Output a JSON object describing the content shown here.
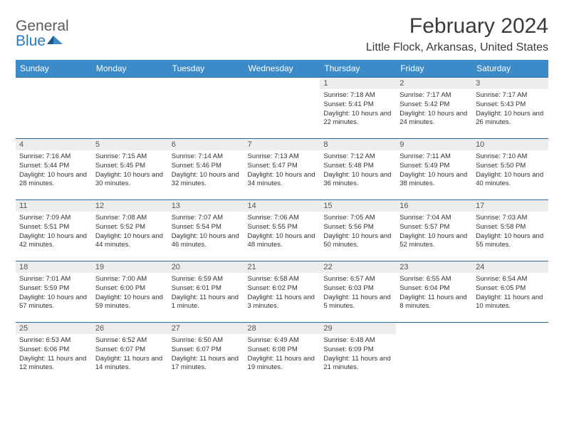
{
  "brand": {
    "part1": "General",
    "part2": "Blue"
  },
  "title": "February 2024",
  "location": "Little Flock, Arkansas, United States",
  "colors": {
    "header_bg": "#3b8bc9",
    "header_text": "#ffffff",
    "daynum_bg": "#ededed",
    "row_border": "#2b6aa0",
    "brand_gray": "#5a5a5a",
    "brand_blue": "#2b78c5"
  },
  "weekdays": [
    "Sunday",
    "Monday",
    "Tuesday",
    "Wednesday",
    "Thursday",
    "Friday",
    "Saturday"
  ],
  "weeks": [
    [
      {
        "n": "",
        "sr": "",
        "ss": "",
        "dl": ""
      },
      {
        "n": "",
        "sr": "",
        "ss": "",
        "dl": ""
      },
      {
        "n": "",
        "sr": "",
        "ss": "",
        "dl": ""
      },
      {
        "n": "",
        "sr": "",
        "ss": "",
        "dl": ""
      },
      {
        "n": "1",
        "sr": "Sunrise: 7:18 AM",
        "ss": "Sunset: 5:41 PM",
        "dl": "Daylight: 10 hours and 22 minutes."
      },
      {
        "n": "2",
        "sr": "Sunrise: 7:17 AM",
        "ss": "Sunset: 5:42 PM",
        "dl": "Daylight: 10 hours and 24 minutes."
      },
      {
        "n": "3",
        "sr": "Sunrise: 7:17 AM",
        "ss": "Sunset: 5:43 PM",
        "dl": "Daylight: 10 hours and 26 minutes."
      }
    ],
    [
      {
        "n": "4",
        "sr": "Sunrise: 7:16 AM",
        "ss": "Sunset: 5:44 PM",
        "dl": "Daylight: 10 hours and 28 minutes."
      },
      {
        "n": "5",
        "sr": "Sunrise: 7:15 AM",
        "ss": "Sunset: 5:45 PM",
        "dl": "Daylight: 10 hours and 30 minutes."
      },
      {
        "n": "6",
        "sr": "Sunrise: 7:14 AM",
        "ss": "Sunset: 5:46 PM",
        "dl": "Daylight: 10 hours and 32 minutes."
      },
      {
        "n": "7",
        "sr": "Sunrise: 7:13 AM",
        "ss": "Sunset: 5:47 PM",
        "dl": "Daylight: 10 hours and 34 minutes."
      },
      {
        "n": "8",
        "sr": "Sunrise: 7:12 AM",
        "ss": "Sunset: 5:48 PM",
        "dl": "Daylight: 10 hours and 36 minutes."
      },
      {
        "n": "9",
        "sr": "Sunrise: 7:11 AM",
        "ss": "Sunset: 5:49 PM",
        "dl": "Daylight: 10 hours and 38 minutes."
      },
      {
        "n": "10",
        "sr": "Sunrise: 7:10 AM",
        "ss": "Sunset: 5:50 PM",
        "dl": "Daylight: 10 hours and 40 minutes."
      }
    ],
    [
      {
        "n": "11",
        "sr": "Sunrise: 7:09 AM",
        "ss": "Sunset: 5:51 PM",
        "dl": "Daylight: 10 hours and 42 minutes."
      },
      {
        "n": "12",
        "sr": "Sunrise: 7:08 AM",
        "ss": "Sunset: 5:52 PM",
        "dl": "Daylight: 10 hours and 44 minutes."
      },
      {
        "n": "13",
        "sr": "Sunrise: 7:07 AM",
        "ss": "Sunset: 5:54 PM",
        "dl": "Daylight: 10 hours and 46 minutes."
      },
      {
        "n": "14",
        "sr": "Sunrise: 7:06 AM",
        "ss": "Sunset: 5:55 PM",
        "dl": "Daylight: 10 hours and 48 minutes."
      },
      {
        "n": "15",
        "sr": "Sunrise: 7:05 AM",
        "ss": "Sunset: 5:56 PM",
        "dl": "Daylight: 10 hours and 50 minutes."
      },
      {
        "n": "16",
        "sr": "Sunrise: 7:04 AM",
        "ss": "Sunset: 5:57 PM",
        "dl": "Daylight: 10 hours and 52 minutes."
      },
      {
        "n": "17",
        "sr": "Sunrise: 7:03 AM",
        "ss": "Sunset: 5:58 PM",
        "dl": "Daylight: 10 hours and 55 minutes."
      }
    ],
    [
      {
        "n": "18",
        "sr": "Sunrise: 7:01 AM",
        "ss": "Sunset: 5:59 PM",
        "dl": "Daylight: 10 hours and 57 minutes."
      },
      {
        "n": "19",
        "sr": "Sunrise: 7:00 AM",
        "ss": "Sunset: 6:00 PM",
        "dl": "Daylight: 10 hours and 59 minutes."
      },
      {
        "n": "20",
        "sr": "Sunrise: 6:59 AM",
        "ss": "Sunset: 6:01 PM",
        "dl": "Daylight: 11 hours and 1 minute."
      },
      {
        "n": "21",
        "sr": "Sunrise: 6:58 AM",
        "ss": "Sunset: 6:02 PM",
        "dl": "Daylight: 11 hours and 3 minutes."
      },
      {
        "n": "22",
        "sr": "Sunrise: 6:57 AM",
        "ss": "Sunset: 6:03 PM",
        "dl": "Daylight: 11 hours and 5 minutes."
      },
      {
        "n": "23",
        "sr": "Sunrise: 6:55 AM",
        "ss": "Sunset: 6:04 PM",
        "dl": "Daylight: 11 hours and 8 minutes."
      },
      {
        "n": "24",
        "sr": "Sunrise: 6:54 AM",
        "ss": "Sunset: 6:05 PM",
        "dl": "Daylight: 11 hours and 10 minutes."
      }
    ],
    [
      {
        "n": "25",
        "sr": "Sunrise: 6:53 AM",
        "ss": "Sunset: 6:06 PM",
        "dl": "Daylight: 11 hours and 12 minutes."
      },
      {
        "n": "26",
        "sr": "Sunrise: 6:52 AM",
        "ss": "Sunset: 6:07 PM",
        "dl": "Daylight: 11 hours and 14 minutes."
      },
      {
        "n": "27",
        "sr": "Sunrise: 6:50 AM",
        "ss": "Sunset: 6:07 PM",
        "dl": "Daylight: 11 hours and 17 minutes."
      },
      {
        "n": "28",
        "sr": "Sunrise: 6:49 AM",
        "ss": "Sunset: 6:08 PM",
        "dl": "Daylight: 11 hours and 19 minutes."
      },
      {
        "n": "29",
        "sr": "Sunrise: 6:48 AM",
        "ss": "Sunset: 6:09 PM",
        "dl": "Daylight: 11 hours and 21 minutes."
      },
      {
        "n": "",
        "sr": "",
        "ss": "",
        "dl": ""
      },
      {
        "n": "",
        "sr": "",
        "ss": "",
        "dl": ""
      }
    ]
  ]
}
